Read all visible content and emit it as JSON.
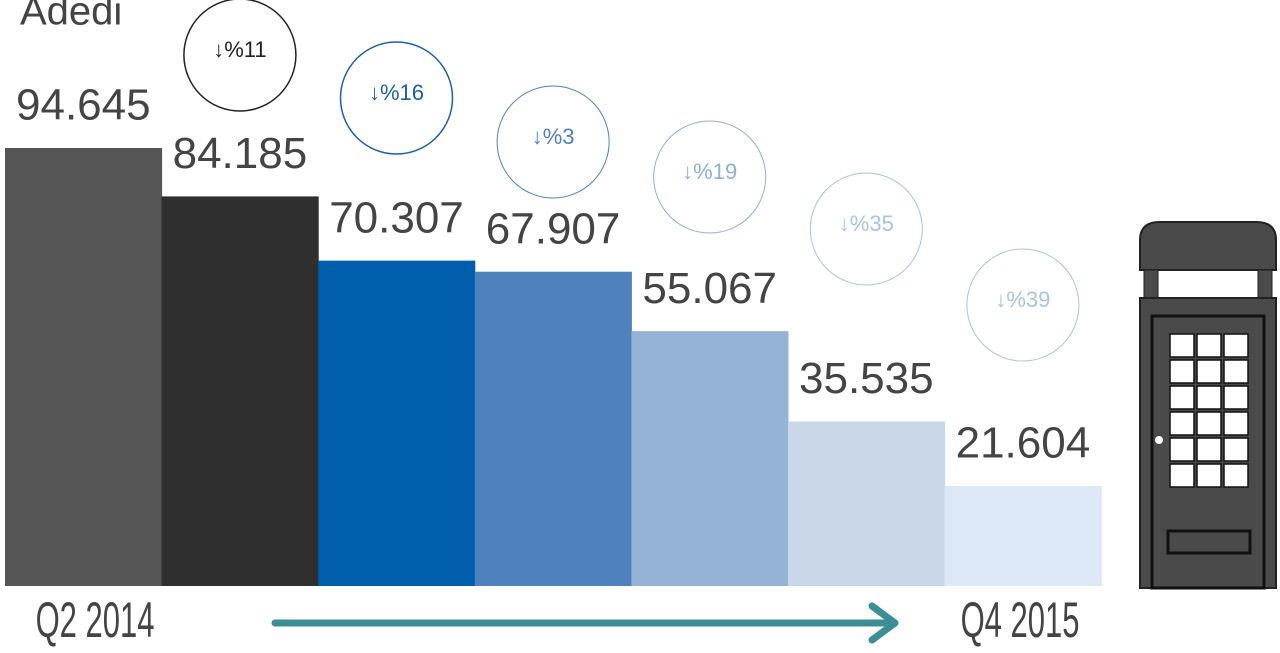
{
  "chart_data": {
    "type": "bar",
    "title": "Adedi",
    "categories": [
      "Q2 2014",
      null,
      null,
      null,
      null,
      null,
      "Q4 2015"
    ],
    "values": [
      94645,
      84185,
      70307,
      67907,
      55067,
      35535,
      21604
    ],
    "value_labels": [
      "94.645",
      "84.185",
      "70.307",
      "67.907",
      "55.067",
      "35.535",
      "21.604"
    ],
    "colors": [
      "#555555",
      "#2f2f2f",
      "#005eac",
      "#4f81bd",
      "#95b3d7",
      "#c9d7e9",
      "#dce8f5"
    ],
    "change_labels": [
      "↓%11",
      "↓%16",
      "↓%3",
      "↓%19",
      "↓%35",
      "↓%39"
    ],
    "change_colors": [
      "#222222",
      "#1f5fa6",
      "#4f81bd",
      "#8fb0d8",
      "#a9c3e2",
      "#a9c3e2"
    ]
  }
}
